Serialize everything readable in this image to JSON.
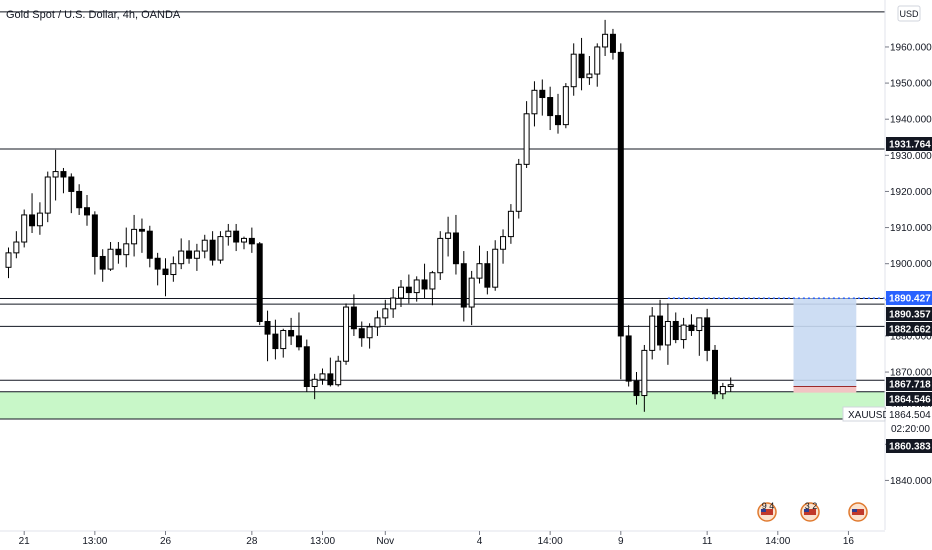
{
  "chart_data": {
    "type": "candlestick",
    "title": "Gold Spot / U.S. Dollar, 4h, OANDA",
    "symbol": "XAUUSD",
    "currency": "USD",
    "ylim": [
      1826,
      1973
    ],
    "y_ticks": [
      1840,
      1850,
      1860,
      1870,
      1880,
      1890,
      1900,
      1910,
      1920,
      1930,
      1940,
      1950,
      1960
    ],
    "y_tick_labels": [
      "1840.000",
      "1850.000",
      "1860.000",
      "1870.000",
      "1880.000",
      "1890.000",
      "1900.000",
      "1910.000",
      "1920.000",
      "1930.000",
      "1940.000",
      "1950.000",
      "1960.000"
    ],
    "x_ticks": [
      {
        "label": "21",
        "i": 2
      },
      {
        "label": "13:00",
        "i": 11
      },
      {
        "label": "26",
        "i": 20
      },
      {
        "label": "28",
        "i": 31
      },
      {
        "label": "13:00",
        "i": 40
      },
      {
        "label": "Nov",
        "i": 48
      },
      {
        "label": "4",
        "i": 60
      },
      {
        "label": "14:00",
        "i": 69
      },
      {
        "label": "9",
        "i": 78
      },
      {
        "label": "11",
        "i": 89
      },
      {
        "label": "14:00",
        "i": 98
      },
      {
        "label": "16",
        "i": 107
      }
    ],
    "candles": [
      [
        1899.0,
        1904.5,
        1896.0,
        1903.0
      ],
      [
        1903.0,
        1909.0,
        1901.5,
        1906.0
      ],
      [
        1906.0,
        1915.0,
        1904.5,
        1913.5
      ],
      [
        1913.5,
        1919.5,
        1908.5,
        1910.5
      ],
      [
        1910.5,
        1917.0,
        1908.0,
        1914.0
      ],
      [
        1914.0,
        1925.5,
        1911.5,
        1924.0
      ],
      [
        1924.0,
        1931.5,
        1917.5,
        1925.5
      ],
      [
        1925.5,
        1926.5,
        1919.5,
        1924.0
      ],
      [
        1924.0,
        1925.0,
        1914.0,
        1920.0
      ],
      [
        1920.0,
        1922.0,
        1913.5,
        1915.5
      ],
      [
        1915.5,
        1919.0,
        1910.5,
        1913.5
      ],
      [
        1913.5,
        1914.5,
        1897.0,
        1902.0
      ],
      [
        1902.0,
        1904.0,
        1895.0,
        1898.5
      ],
      [
        1898.5,
        1906.0,
        1898.0,
        1904.0
      ],
      [
        1904.0,
        1906.0,
        1900.0,
        1902.5
      ],
      [
        1902.5,
        1910.0,
        1899.0,
        1905.5
      ],
      [
        1905.5,
        1913.5,
        1902.0,
        1909.5
      ],
      [
        1909.5,
        1912.5,
        1903.0,
        1909.0
      ],
      [
        1909.0,
        1910.5,
        1899.0,
        1901.5
      ],
      [
        1901.5,
        1903.0,
        1894.0,
        1898.5
      ],
      [
        1898.5,
        1901.5,
        1891.0,
        1897.0
      ],
      [
        1897.0,
        1902.0,
        1895.0,
        1900.0
      ],
      [
        1900.0,
        1907.0,
        1898.5,
        1903.5
      ],
      [
        1903.5,
        1906.5,
        1900.0,
        1901.5
      ],
      [
        1901.5,
        1905.5,
        1898.0,
        1903.5
      ],
      [
        1903.5,
        1908.0,
        1901.5,
        1906.5
      ],
      [
        1906.5,
        1909.0,
        1899.5,
        1901.0
      ],
      [
        1901.0,
        1909.0,
        1900.0,
        1907.5
      ],
      [
        1907.5,
        1911.0,
        1905.0,
        1909.0
      ],
      [
        1909.0,
        1911.0,
        1903.5,
        1906.0
      ],
      [
        1906.0,
        1907.5,
        1904.0,
        1907.0
      ],
      [
        1907.0,
        1910.0,
        1903.0,
        1905.5
      ],
      [
        1905.5,
        1906.0,
        1883.0,
        1884.0
      ],
      [
        1884.0,
        1887.0,
        1873.0,
        1880.5
      ],
      [
        1880.5,
        1884.5,
        1873.5,
        1876.5
      ],
      [
        1876.5,
        1882.0,
        1874.0,
        1881.5
      ],
      [
        1881.5,
        1885.0,
        1877.5,
        1880.0
      ],
      [
        1880.0,
        1886.5,
        1876.0,
        1877.0
      ],
      [
        1877.0,
        1879.0,
        1864.5,
        1866.0
      ],
      [
        1866.0,
        1869.5,
        1862.5,
        1868.0
      ],
      [
        1868.0,
        1871.0,
        1866.5,
        1869.5
      ],
      [
        1869.5,
        1874.0,
        1866.0,
        1866.5
      ],
      [
        1866.5,
        1874.5,
        1866.0,
        1873.0
      ],
      [
        1873.0,
        1889.0,
        1872.0,
        1888.0
      ],
      [
        1888.0,
        1891.5,
        1880.0,
        1882.0
      ],
      [
        1882.0,
        1884.0,
        1877.0,
        1879.5
      ],
      [
        1879.5,
        1883.5,
        1876.5,
        1882.5
      ],
      [
        1882.5,
        1887.0,
        1880.0,
        1885.0
      ],
      [
        1885.0,
        1890.0,
        1883.0,
        1887.5
      ],
      [
        1887.5,
        1893.0,
        1885.0,
        1890.5
      ],
      [
        1890.5,
        1895.5,
        1888.0,
        1893.5
      ],
      [
        1893.5,
        1897.0,
        1889.0,
        1892.0
      ],
      [
        1892.0,
        1896.5,
        1889.5,
        1895.5
      ],
      [
        1895.5,
        1900.0,
        1890.5,
        1893.0
      ],
      [
        1893.0,
        1898.0,
        1888.5,
        1897.5
      ],
      [
        1897.5,
        1909.0,
        1895.5,
        1907.0
      ],
      [
        1907.0,
        1913.0,
        1902.0,
        1908.5
      ],
      [
        1908.5,
        1913.5,
        1897.0,
        1900.0
      ],
      [
        1900.0,
        1903.5,
        1884.0,
        1888.0
      ],
      [
        1888.0,
        1898.0,
        1883.0,
        1896.0
      ],
      [
        1896.0,
        1905.0,
        1894.5,
        1900.0
      ],
      [
        1900.0,
        1903.5,
        1891.5,
        1893.5
      ],
      [
        1893.5,
        1906.5,
        1892.5,
        1904.0
      ],
      [
        1904.0,
        1909.5,
        1900.0,
        1907.5
      ],
      [
        1907.5,
        1916.5,
        1905.5,
        1914.5
      ],
      [
        1914.5,
        1929.0,
        1912.5,
        1927.5
      ],
      [
        1927.5,
        1945.0,
        1926.5,
        1941.5
      ],
      [
        1941.5,
        1950.5,
        1938.0,
        1948.0
      ],
      [
        1948.0,
        1951.0,
        1941.0,
        1946.0
      ],
      [
        1946.0,
        1949.0,
        1937.0,
        1941.0
      ],
      [
        1941.0,
        1947.0,
        1936.0,
        1938.5
      ],
      [
        1938.5,
        1950.0,
        1937.5,
        1949.0
      ],
      [
        1949.0,
        1961.0,
        1946.5,
        1958.0
      ],
      [
        1958.0,
        1962.5,
        1948.0,
        1951.5
      ],
      [
        1951.5,
        1957.5,
        1949.5,
        1952.5
      ],
      [
        1952.5,
        1961.0,
        1949.0,
        1960.0
      ],
      [
        1960.0,
        1967.5,
        1957.5,
        1963.5
      ],
      [
        1963.5,
        1965.0,
        1956.5,
        1958.5
      ],
      [
        1958.5,
        1961.0,
        1868.0,
        1880.0
      ],
      [
        1880.0,
        1883.0,
        1866.0,
        1867.5
      ],
      [
        1867.5,
        1870.0,
        1861.0,
        1863.5
      ],
      [
        1863.5,
        1877.5,
        1859.0,
        1876.0
      ],
      [
        1876.0,
        1888.0,
        1873.5,
        1885.5
      ],
      [
        1885.5,
        1890.0,
        1876.0,
        1877.5
      ],
      [
        1877.5,
        1889.0,
        1872.0,
        1884.0
      ],
      [
        1884.0,
        1886.5,
        1878.0,
        1879.0
      ],
      [
        1879.0,
        1885.0,
        1876.5,
        1883.0
      ],
      [
        1883.0,
        1886.0,
        1880.0,
        1881.5
      ],
      [
        1881.5,
        1884.0,
        1874.5,
        1885.0
      ],
      [
        1885.0,
        1887.5,
        1873.0,
        1876.0
      ],
      [
        1876.0,
        1877.5,
        1862.5,
        1864.0
      ],
      [
        1864.0,
        1867.0,
        1862.5,
        1866.0
      ],
      [
        1866.0,
        1868.5,
        1864.5,
        1866.5
      ]
    ],
    "horizontal_lines": [
      1969.7,
      1931.764,
      1890.357,
      1888.8,
      1882.662,
      1867.718,
      1864.546,
      1857.0
    ],
    "support_zone": {
      "from": 1857.0,
      "to": 1864.546,
      "color": "#c8f7c8"
    },
    "position_tool": {
      "entry": 1866.0,
      "target": 1890.427,
      "stop": 1864.3,
      "from_i": 100,
      "to_i": 108,
      "color": "#c8d9f2"
    },
    "price_tags": [
      {
        "label": "1890.427",
        "value": 1890.427,
        "style": "blue"
      },
      {
        "label": "1890.357",
        "value": 1890.357,
        "style": "dark"
      },
      {
        "label": "1882.662",
        "value": 1882.662,
        "style": "dark"
      },
      {
        "label": "1931.764",
        "value": 1931.764,
        "style": "dark"
      },
      {
        "label": "1867.718",
        "value": 1867.718,
        "style": "dark"
      },
      {
        "label": "1864.546",
        "value": 1864.546,
        "style": "dark"
      },
      {
        "label": "1860.383",
        "value": 1860.383,
        "style": "dark"
      }
    ],
    "current_price": {
      "label": "1864.504",
      "countdown": "02:20:00",
      "symbol": "XAUUSD"
    },
    "event_badges": [
      "9 4",
      "3 2",
      ""
    ]
  }
}
